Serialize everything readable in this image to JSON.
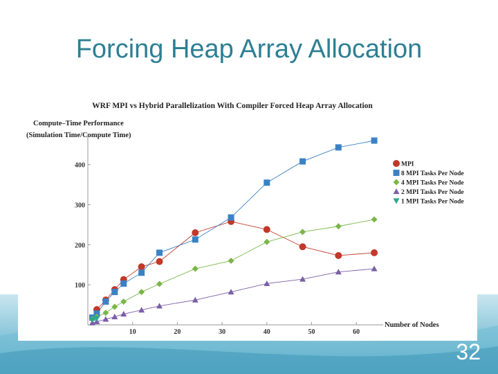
{
  "slide": {
    "title": "Forcing Heap Array Allocation",
    "number": "32"
  },
  "chart_data": {
    "type": "line",
    "title": "WRF MPI vs Hybrid Parallelization With Compiler Forced Heap Array Allocation",
    "ylabel_line1": "Compute–Time Performance",
    "ylabel_line2": "(Simulation Time/Compute Time)",
    "xlabel": "Number of Nodes",
    "xlim": [
      0,
      66
    ],
    "ylim": [
      0,
      460
    ],
    "x_ticks": [
      10,
      20,
      30,
      40,
      50,
      60
    ],
    "y_ticks": [
      100,
      200,
      300,
      400
    ],
    "grid": false,
    "legend_position": "right",
    "series": [
      {
        "name": "MPI",
        "marker": "circle",
        "color": "#c0392b",
        "x": [
          2,
          4,
          6,
          8,
          12,
          16,
          24,
          32,
          40,
          48,
          56,
          64
        ],
        "y": [
          38,
          62,
          88,
          113,
          145,
          158,
          230,
          258,
          238,
          195,
          173,
          180
        ]
      },
      {
        "name": "8 MPI Tasks Per Node",
        "marker": "square",
        "color": "#3b82c4",
        "x": [
          1,
          2,
          4,
          6,
          8,
          12,
          16,
          24,
          32,
          40,
          48,
          56,
          64
        ],
        "y": [
          18,
          28,
          58,
          82,
          103,
          130,
          180,
          213,
          268,
          355,
          408,
          443,
          460
        ]
      },
      {
        "name": "4 MPI Tasks Per Node",
        "marker": "diamond",
        "color": "#7ab648",
        "x": [
          1,
          2,
          4,
          6,
          8,
          12,
          16,
          24,
          32,
          40,
          48,
          56,
          64
        ],
        "y": [
          14,
          20,
          30,
          45,
          58,
          82,
          102,
          140,
          160,
          207,
          232,
          246,
          263
        ]
      },
      {
        "name": "2 MPI Tasks Per Node",
        "marker": "triangle-up",
        "color": "#7b5ea7",
        "x": [
          1,
          2,
          4,
          6,
          8,
          12,
          16,
          24,
          32,
          40,
          48,
          56,
          64
        ],
        "y": [
          5,
          8,
          14,
          20,
          27,
          37,
          47,
          62,
          82,
          103,
          114,
          132,
          140
        ]
      },
      {
        "name": "1 MPI Tasks Per Node",
        "marker": "triangle-down",
        "color": "#2aa88e",
        "x": [
          1,
          2
        ],
        "y": [
          12,
          16
        ]
      }
    ]
  }
}
